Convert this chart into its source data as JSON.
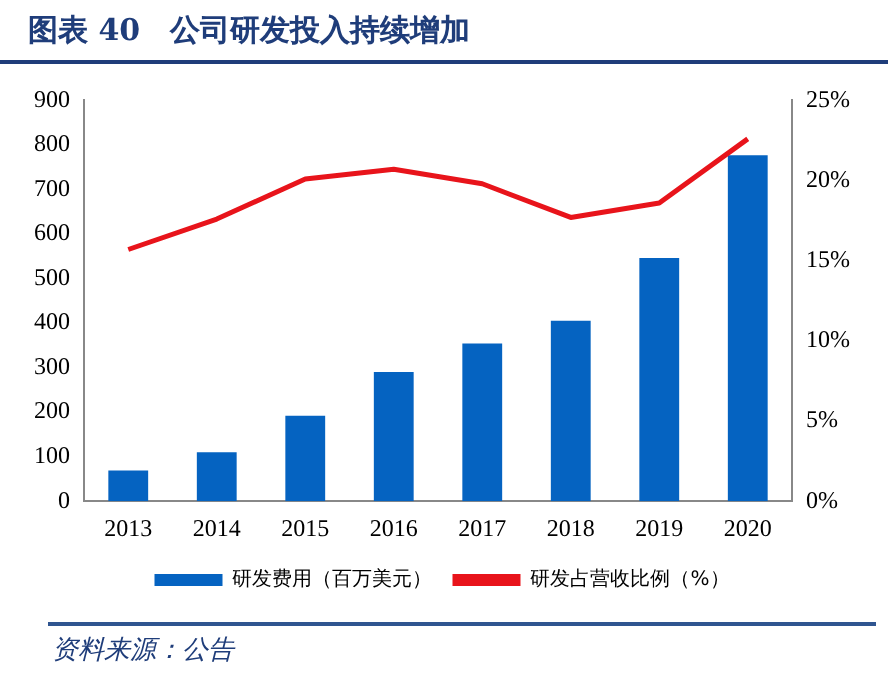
{
  "chart_data": {
    "type": "bar",
    "title": "图表 40　公司研发投入持续增加",
    "categories": [
      "2013",
      "2014",
      "2015",
      "2016",
      "2017",
      "2018",
      "2019",
      "2020"
    ],
    "series": [
      {
        "name": "研发费用（百万美元）",
        "color": "#0563c1",
        "values": [
          69,
          110,
          192,
          290,
          354,
          405,
          546,
          777
        ]
      },
      {
        "name": "研发占营收比例（%）",
        "type": "line",
        "axis": "y2",
        "color": "#e8141b",
        "marker": "none",
        "values": [
          15.7,
          17.6,
          20.1,
          20.7,
          19.8,
          17.7,
          18.6,
          22.6
        ]
      }
    ],
    "ylim": [
      0,
      900
    ],
    "yticks": [
      0,
      100,
      200,
      300,
      400,
      500,
      600,
      700,
      800,
      900
    ],
    "y2lim": [
      0,
      25
    ],
    "y2ticks": [
      {
        "value": 0,
        "label": "0%"
      },
      {
        "value": 5,
        "label": "5%"
      },
      {
        "value": 10,
        "label": "10%"
      },
      {
        "value": 15,
        "label": "15%"
      },
      {
        "value": 20,
        "label": "20%"
      },
      {
        "value": 25,
        "label": "25%"
      }
    ],
    "grid": false,
    "legend": "bottom",
    "annotations": [
      "资料来源：公告"
    ]
  }
}
